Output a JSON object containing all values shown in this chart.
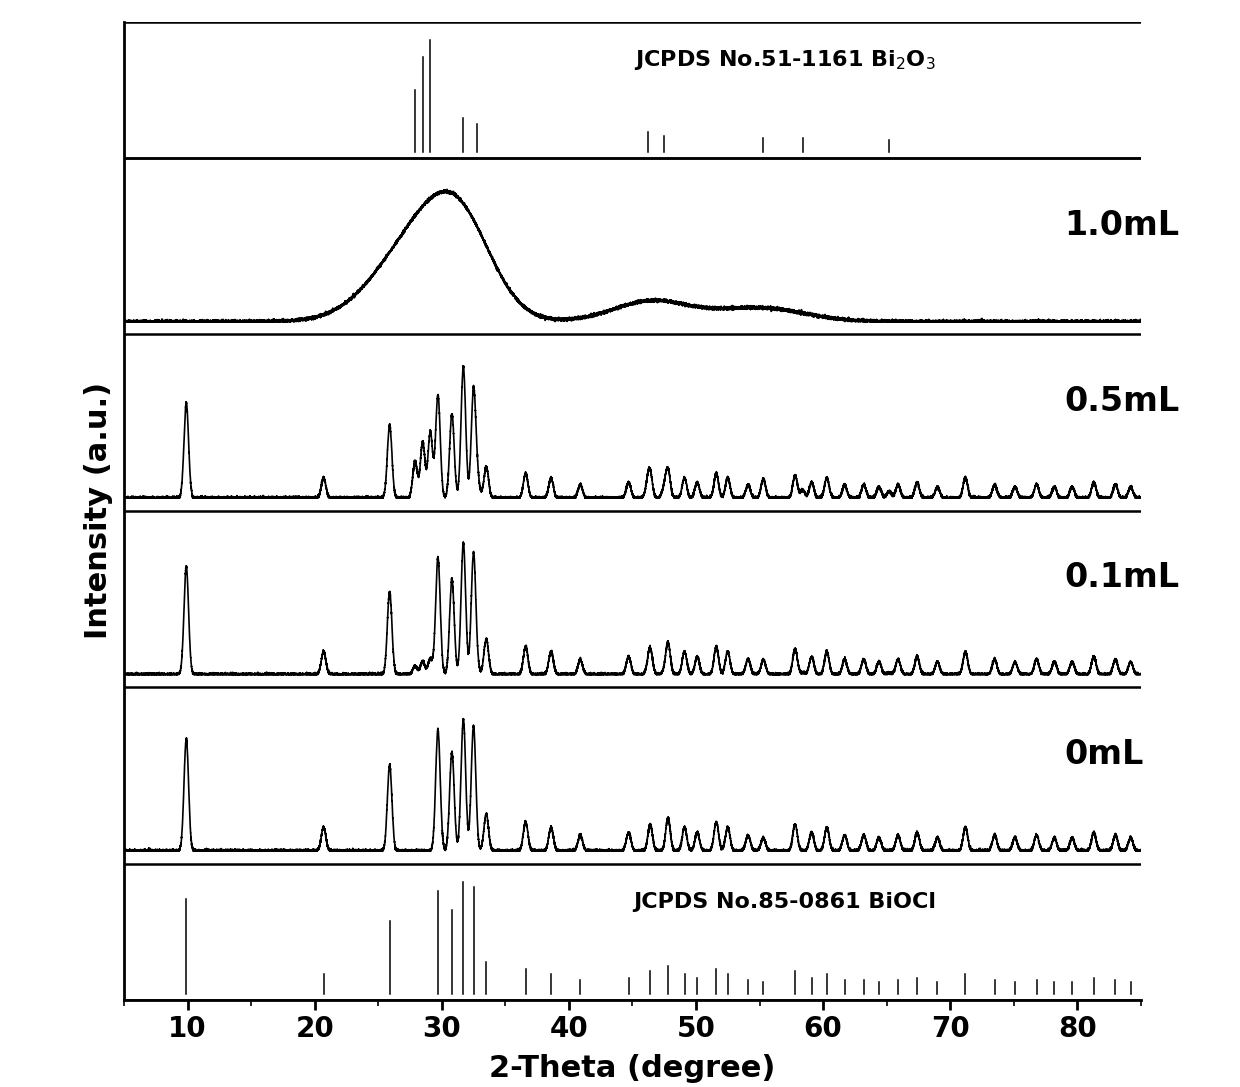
{
  "x_min": 5,
  "x_max": 85,
  "xlabel": "2-Theta (degree)",
  "ylabel": "Intensity (a.u.)",
  "xticks": [
    10,
    20,
    30,
    40,
    50,
    60,
    70,
    80
  ],
  "background_color": "#ffffff",
  "line_color": "#000000",
  "labels": [
    "1.0mL",
    "0.5mL",
    "0.1mL",
    "0mL"
  ],
  "label_fontsize": 24,
  "axis_fontsize": 22,
  "tick_fontsize": 20,
  "ref_label_top": "JCPDS No.51-1161 Bi$_2$O$_3$",
  "ref_label_bot": "JCPDS No.85-0861 BiOCl",
  "biocl_peaks": [
    9.9,
    20.7,
    25.9,
    29.7,
    30.8,
    31.7,
    32.5,
    33.5,
    36.6,
    38.6,
    40.9,
    44.7,
    46.4,
    47.8,
    49.1,
    50.1,
    51.6,
    52.5,
    54.1,
    55.3,
    57.8,
    59.1,
    60.3,
    61.7,
    63.2,
    64.4,
    65.9,
    67.4,
    69.0,
    71.2,
    73.5,
    75.1,
    76.8,
    78.2,
    79.6,
    81.3,
    83.0,
    84.2
  ],
  "biocl_heights": [
    0.85,
    0.18,
    0.65,
    0.92,
    0.75,
    1.0,
    0.95,
    0.28,
    0.22,
    0.18,
    0.12,
    0.14,
    0.2,
    0.25,
    0.18,
    0.14,
    0.22,
    0.18,
    0.12,
    0.1,
    0.2,
    0.14,
    0.18,
    0.12,
    0.12,
    0.1,
    0.12,
    0.14,
    0.1,
    0.18,
    0.12,
    0.1,
    0.12,
    0.1,
    0.1,
    0.14,
    0.12,
    0.1
  ],
  "bi2o3_peaks": [
    27.9,
    28.5,
    29.1,
    31.7,
    32.8,
    46.2,
    47.5,
    55.3,
    58.4,
    65.2
  ],
  "bi2o3_heights": [
    0.55,
    0.85,
    1.0,
    0.3,
    0.25,
    0.18,
    0.14,
    0.12,
    0.12,
    0.1
  ]
}
